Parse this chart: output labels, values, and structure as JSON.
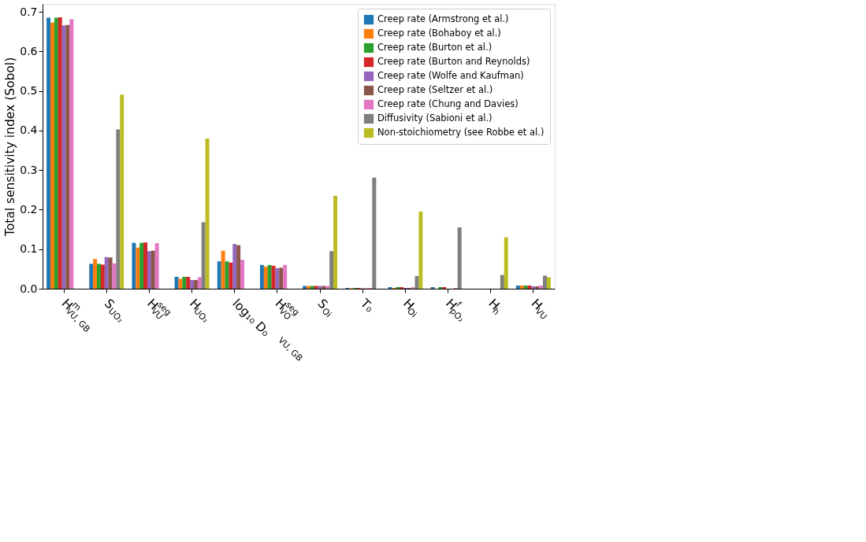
{
  "chart_data": {
    "type": "bar",
    "ylabel": "Total sensitivity index (Sobol)",
    "categories": [
      "H$^{m}$$_{VU, GB}$",
      "S$_{UO₂}$",
      "H$^{seg}$$_{VU}$",
      "H$_{UO₂}$",
      "log₁₀ D₀$^{VU, GB}$",
      "H$^{seg}$$_{VO}$",
      "S$_{Oi}$",
      "T₀",
      "H$_{Oi}$",
      "H$^{f}$$_{pO₂}$",
      "H$_{h}$",
      "H$_{VU}$"
    ],
    "series": [
      {
        "name": "Creep rate (Armstrong et al.)",
        "color": "#1f77b4",
        "values": [
          0.685,
          0.063,
          0.116,
          0.03,
          0.069,
          0.06,
          0.007,
          0.002,
          0.004,
          0.004,
          0,
          0.008
        ]
      },
      {
        "name": "Creep rate (Bohaboy et al.)",
        "color": "#ff7f0e",
        "values": [
          0.673,
          0.075,
          0.104,
          0.025,
          0.096,
          0.056,
          0.007,
          0.001,
          0.002,
          0,
          0,
          0.008
        ]
      },
      {
        "name": "Creep rate (Burton et al.)",
        "color": "#2ca02c",
        "values": [
          0.685,
          0.063,
          0.116,
          0.03,
          0.069,
          0.06,
          0.007,
          0.002,
          0.004,
          0.004,
          0,
          0.008
        ]
      },
      {
        "name": "Creep rate (Burton and Reynolds)",
        "color": "#d62728",
        "values": [
          0.686,
          0.061,
          0.117,
          0.03,
          0.066,
          0.058,
          0.007,
          0.002,
          0.004,
          0.004,
          0,
          0.008
        ]
      },
      {
        "name": "Creep rate (Wolfe and Kaufman)",
        "color": "#9467bd",
        "values": [
          0.666,
          0.08,
          0.095,
          0.022,
          0.113,
          0.052,
          0.007,
          0.001,
          0.002,
          0,
          0,
          0.006
        ]
      },
      {
        "name": "Creep rate (Seltzer et al.)",
        "color": "#8c564b",
        "values": [
          0.667,
          0.079,
          0.096,
          0.022,
          0.11,
          0.053,
          0.007,
          0.001,
          0.002,
          0,
          0,
          0.006
        ]
      },
      {
        "name": "Creep rate (Chung and Davies)",
        "color": "#e377c2",
        "values": [
          0.681,
          0.064,
          0.115,
          0.029,
          0.073,
          0.06,
          0.007,
          0.002,
          0.004,
          0.002,
          0,
          0.008
        ]
      },
      {
        "name": "Diffusivity (Sabioni et al.)",
        "color": "#7f7f7f",
        "values": [
          0,
          0.403,
          0,
          0.168,
          0,
          0,
          0.095,
          0.281,
          0.032,
          0.155,
          0.035,
          0.033
        ]
      },
      {
        "name": "Non-stoichiometry (see Robbe et al.)",
        "color": "#bcbd22",
        "values": [
          0,
          0.491,
          0,
          0.38,
          0,
          0,
          0.235,
          0,
          0.195,
          0,
          0.13,
          0.029
        ]
      }
    ],
    "ylim": [
      0,
      0.72
    ],
    "yticks": [
      {
        "value": 0,
        "label": "0.0"
      },
      {
        "value": 0.1,
        "label": "0.1"
      },
      {
        "value": 0.2,
        "label": "0.2"
      },
      {
        "value": 0.3,
        "label": "0.3"
      },
      {
        "value": 0.4,
        "label": "0.4"
      },
      {
        "value": 0.5,
        "label": "0.5"
      },
      {
        "value": 0.6,
        "label": "0.6"
      },
      {
        "value": 0.7,
        "label": "0.7"
      }
    ],
    "grid": false,
    "legend": "top right"
  }
}
